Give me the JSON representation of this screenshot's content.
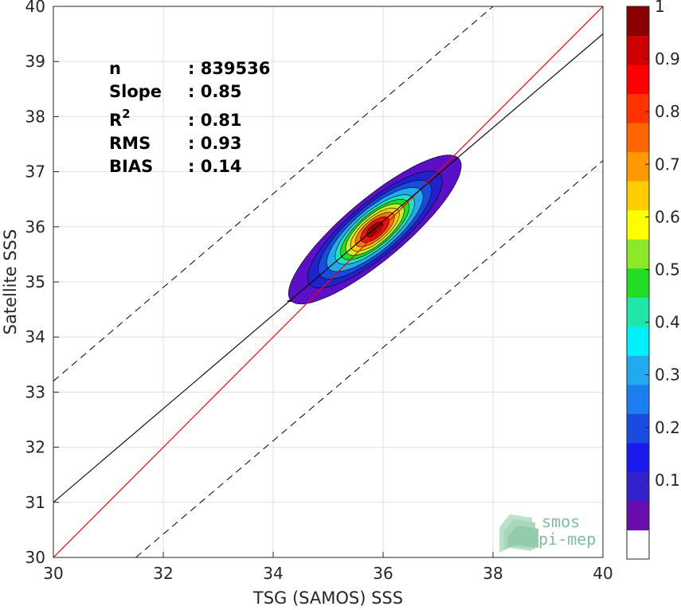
{
  "chart_data": {
    "type": "density-contour",
    "title": "",
    "xlabel": "TSG (SAMOS) SSS",
    "ylabel": "Satellite SSS",
    "xlim": [
      30,
      40
    ],
    "ylim": [
      30,
      40
    ],
    "x_ticks": [
      "30",
      "32",
      "34",
      "36",
      "38",
      "40"
    ],
    "y_ticks": [
      "30",
      "31",
      "32",
      "33",
      "34",
      "35",
      "36",
      "37",
      "38",
      "39",
      "40"
    ],
    "grid": true,
    "stats": [
      {
        "key": "n",
        "value": ": 839536"
      },
      {
        "key": "Slope",
        "value": ": 0.85"
      },
      {
        "key": "R",
        "sup": "2",
        "value": ": 0.81"
      },
      {
        "key": "RMS",
        "value": ": 0.93"
      },
      {
        "key": "BIAS",
        "value": ": 0.14"
      }
    ],
    "lines": {
      "one_to_one": {
        "color": "#ff0000",
        "slope": 1,
        "intercept": 0
      },
      "regression": {
        "color": "#000000",
        "slope": 0.85,
        "intercept": 5.5,
        "x_range": [
          30,
          40
        ]
      },
      "upper_dashed": {
        "color": "#000000",
        "style": "dashed",
        "points": [
          [
            30,
            33.2
          ],
          [
            38,
            40
          ]
        ]
      },
      "lower_dashed": {
        "color": "#000000",
        "style": "dashed",
        "points": [
          [
            31.5,
            30
          ],
          [
            40,
            37.2
          ]
        ]
      }
    },
    "contours": {
      "center": [
        35.85,
        35.95
      ],
      "angle_deg": 40,
      "levels": [
        {
          "level": 0.05,
          "a": 2.0,
          "b": 0.55,
          "color": "#5b0fc7"
        },
        {
          "level": 0.1,
          "a": 1.55,
          "b": 0.48,
          "color": "#2222cc"
        },
        {
          "level": 0.2,
          "a": 1.3,
          "b": 0.43,
          "color": "#1a4be0"
        },
        {
          "level": 0.3,
          "a": 1.1,
          "b": 0.38,
          "color": "#22aaee"
        },
        {
          "level": 0.4,
          "a": 0.9,
          "b": 0.33,
          "color": "#1de5c0"
        },
        {
          "level": 0.5,
          "a": 0.78,
          "b": 0.29,
          "color": "#22dd22"
        },
        {
          "level": 0.6,
          "a": 0.66,
          "b": 0.26,
          "color": "#c8f02a"
        },
        {
          "level": 0.7,
          "a": 0.55,
          "b": 0.22,
          "color": "#ffcc00"
        },
        {
          "level": 0.8,
          "a": 0.44,
          "b": 0.18,
          "color": "#ff7700"
        },
        {
          "level": 0.9,
          "a": 0.32,
          "b": 0.14,
          "color": "#ee1111"
        },
        {
          "level": 1.0,
          "a": 0.18,
          "b": 0.09,
          "color": "#990000"
        }
      ]
    },
    "colorbar": {
      "ticks": [
        "0.1",
        "0.2",
        "0.3",
        "0.4",
        "0.5",
        "0.6",
        "0.7",
        "0.8",
        "0.9",
        "1"
      ],
      "colors": [
        "#ffffff",
        "#6a0dad",
        "#3322cc",
        "#1a1aee",
        "#1a4be0",
        "#1c7ff0",
        "#22aaee",
        "#00f0ff",
        "#20e6a8",
        "#22dd22",
        "#8ee82a",
        "#ffff00",
        "#ffcc00",
        "#ff9900",
        "#ff6600",
        "#ff3300",
        "#ff0000",
        "#cc0000",
        "#8b0000"
      ]
    }
  },
  "logo": {
    "line1": "smos",
    "line2": "pi-mep"
  }
}
